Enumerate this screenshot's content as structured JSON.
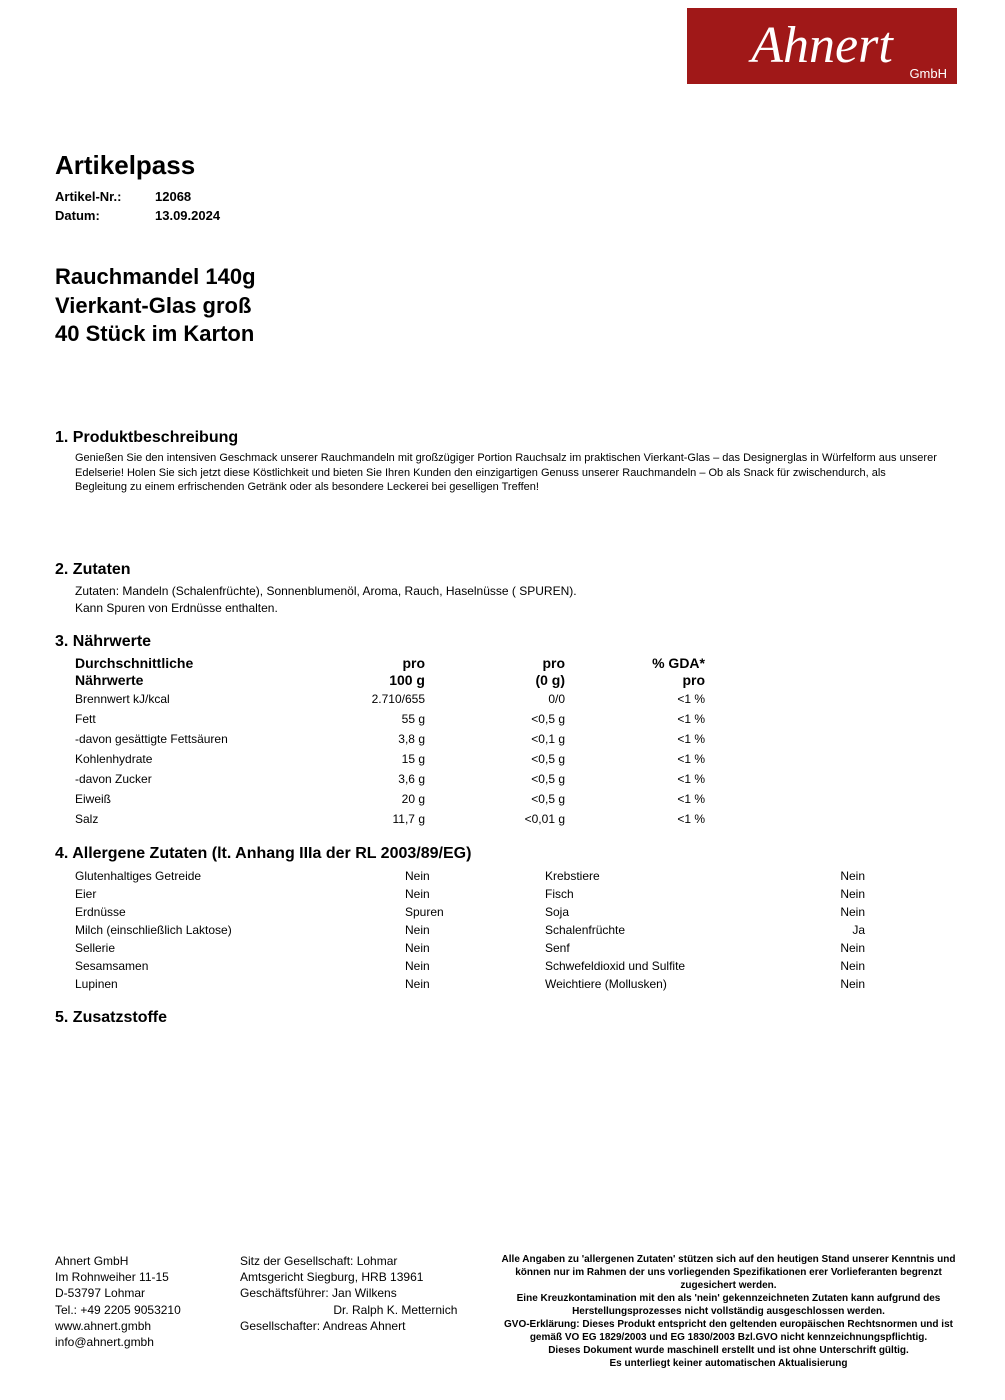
{
  "logo": {
    "main": "Ahnert",
    "sub": "GmbH"
  },
  "header": {
    "title": "Artikelpass",
    "meta": [
      {
        "label": "Artikel-Nr.:",
        "value": "12068"
      },
      {
        "label": "Datum:",
        "value": "13.09.2024"
      }
    ]
  },
  "product": {
    "line1": "Rauchmandel 140g",
    "line2": "Vierkant-Glas groß",
    "line3": "40 Stück im Karton"
  },
  "sections": {
    "s1": {
      "heading": "1. Produktbeschreibung",
      "text": "Genießen Sie den intensiven Geschmack unserer Rauchmandeln mit großzügiger Portion Rauchsalz im praktischen Vierkant-Glas – das Designerglas in Würfelform aus unserer Edelserie! Holen Sie sich jetzt diese Köstlichkeit und bieten Sie Ihren Kunden den einzigartigen Genuss unserer Rauchmandeln – Ob als Snack für zwischendurch, als Begleitung zu einem erfrischenden Getränk oder als besondere Leckerei bei geselligen Treffen!"
    },
    "s2": {
      "heading": "2. Zutaten",
      "line1": "Zutaten: Mandeln (Schalenfrüchte), Sonnenblumenöl, Aroma, Rauch, Haselnüsse ( SPUREN).",
      "line2": "Kann Spuren von Erdnüsse enthalten."
    },
    "s3": {
      "heading": "3. Nährwerte",
      "header": {
        "c1a": "Durchschnittliche",
        "c1b": "Nährwerte",
        "c2a": "pro",
        "c2b": "100 g",
        "c3a": "pro",
        "c3b": "(0 g)",
        "c4a": "% GDA*",
        "c4b": "pro"
      },
      "rows": [
        {
          "c1": "Brennwert kJ/kcal",
          "c2": "2.710/655",
          "c3": "0/0",
          "c4": "<1 %"
        },
        {
          "c1": "Fett",
          "c2": "55 g",
          "c3": "<0,5 g",
          "c4": "<1 %"
        },
        {
          "c1": "-davon gesättigte Fettsäuren",
          "c2": "3,8 g",
          "c3": "<0,1 g",
          "c4": "<1 %"
        },
        {
          "c1": "Kohlenhydrate",
          "c2": "15 g",
          "c3": "<0,5 g",
          "c4": "<1 %"
        },
        {
          "c1": "-davon Zucker",
          "c2": "3,6 g",
          "c3": "<0,5 g",
          "c4": "<1 %"
        },
        {
          "c1": "Eiweiß",
          "c2": "20 g",
          "c3": "<0,5 g",
          "c4": "<1 %"
        },
        {
          "c1": "Salz",
          "c2": "11,7 g",
          "c3": "<0,01 g",
          "c4": "<1 %"
        }
      ]
    },
    "s4": {
      "heading": "4. Allergene Zutaten (lt. Anhang IIIa der RL 2003/89/EG)",
      "rows": [
        {
          "l": "Glutenhaltiges Getreide",
          "lv": "Nein",
          "r": "Krebstiere",
          "rv": "Nein"
        },
        {
          "l": "Eier",
          "lv": "Nein",
          "r": "Fisch",
          "rv": "Nein"
        },
        {
          "l": "Erdnüsse",
          "lv": "Spuren",
          "r": "Soja",
          "rv": "Nein"
        },
        {
          "l": "Milch (einschließlich Laktose)",
          "lv": "Nein",
          "r": "Schalenfrüchte",
          "rv": "Ja"
        },
        {
          "l": "Sellerie",
          "lv": "Nein",
          "r": "Senf",
          "rv": "Nein"
        },
        {
          "l": "Sesamsamen",
          "lv": "Nein",
          "r": "Schwefeldioxid und Sulfite",
          "rv": "Nein"
        },
        {
          "l": "Lupinen",
          "lv": "Nein",
          "r": "Weichtiere (Mollusken)",
          "rv": "Nein"
        }
      ]
    },
    "s5": {
      "heading": "5. Zusatzstoffe"
    }
  },
  "footer": {
    "col1": [
      "Ahnert GmbH",
      "Im Rohnweiher 11-15",
      "D-53797 Lohmar",
      "Tel.: +49 2205 9053210",
      "www.ahnert.gmbh",
      "info@ahnert.gmbh"
    ],
    "col2": [
      "Sitz der Gesellschaft: Lohmar",
      "Amtsgericht Siegburg, HRB 13961",
      "Geschäftsführer: Jan Wilkens",
      "                            Dr. Ralph K. Metternich",
      "Gesellschafter: Andreas Ahnert"
    ],
    "col3": [
      "Alle Angaben zu 'allergenen Zutaten' stützen sich auf den heutigen Stand unserer Kenntnis und können nur im Rahmen der uns vorliegenden Spezifikationen erer Vorlieferanten begrenzt zugesichert werden.",
      "Eine Kreuzkontamination mit den als 'nein' gekennzeichneten Zutaten kann aufgrund des Herstellungsprozesses nicht vollständig ausgeschlossen werden.",
      "GVO-Erklärung: Dieses Produkt entspricht den geltenden europäischen Rechtsnormen und ist gemäß VO EG 1829/2003 und EG 1830/2003 Bzl.GVO nicht kennzeichnungspflichtig.",
      "Dieses Dokument wurde maschinell erstellt und ist ohne Unterschrift gültig.",
      "Es unterliegt keiner automatischen Aktualisierung"
    ]
  }
}
